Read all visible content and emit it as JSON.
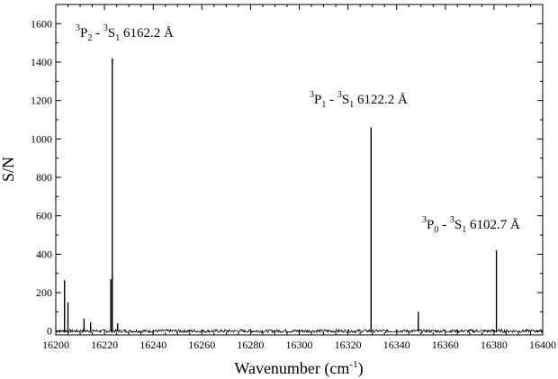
{
  "chart_data": {
    "type": "line",
    "xlabel": "Wavenumber (cm",
    "xlabel_exponent": "-1",
    "xlabel_suffix": ")",
    "ylabel": "S/N",
    "xlim": [
      16200,
      16400
    ],
    "ylim": [
      -20,
      1700
    ],
    "x_ticks": [
      16200,
      16220,
      16240,
      16260,
      16280,
      16300,
      16320,
      16340,
      16360,
      16380,
      16400
    ],
    "y_ticks": [
      0,
      200,
      400,
      600,
      800,
      1000,
      1200,
      1400,
      1600
    ],
    "grid": false,
    "noise_level": 8,
    "lines": [
      {
        "x": 16223.2,
        "y": 1420
      },
      {
        "x": 16329.5,
        "y": 1060
      },
      {
        "x": 16381.0,
        "y": 420
      },
      {
        "x": 16203.6,
        "y": 265
      },
      {
        "x": 16205.0,
        "y": 150
      },
      {
        "x": 16211.6,
        "y": 65
      },
      {
        "x": 16214.3,
        "y": 45
      },
      {
        "x": 16222.6,
        "y": 270
      },
      {
        "x": 16225.4,
        "y": 40
      },
      {
        "x": 16348.9,
        "y": 100
      }
    ],
    "annotations": [
      {
        "id": "p2",
        "sup1": "3",
        "term1": "P",
        "sub1": "2",
        "sep": " - ",
        "sup2": "3",
        "term2": "S",
        "sub2": "1",
        "wavelength": " 6162.2 Å"
      },
      {
        "id": "p1",
        "sup1": "3",
        "term1": "P",
        "sub1": "1",
        "sep": " - ",
        "sup2": "3",
        "term2": "S",
        "sub2": "1",
        "wavelength": " 6122.2 Å"
      },
      {
        "id": "p0",
        "sup1": "3",
        "term1": "P",
        "sub1": "0",
        "sep": " - ",
        "sup2": "3",
        "term2": "S",
        "sub2": "1",
        "wavelength": " 6102.7 Å"
      }
    ]
  }
}
